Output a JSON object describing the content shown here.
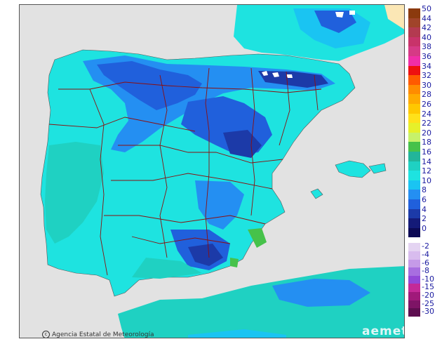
{
  "map": {
    "type": "temperature-map",
    "region": "Iberian Peninsula and Balearic Islands",
    "credit": "Agencia Estatal de Meteorología",
    "logo": "aemet"
  },
  "legend": {
    "positive": [
      {
        "label": "50",
        "color": "#8b3a0e"
      },
      {
        "label": "44",
        "color": "#a0442a"
      },
      {
        "label": "42",
        "color": "#b33a50"
      },
      {
        "label": "40",
        "color": "#c8336a"
      },
      {
        "label": "38",
        "color": "#d63a86"
      },
      {
        "label": "36",
        "color": "#f02ea8"
      },
      {
        "label": "34",
        "color": "#ee1010"
      },
      {
        "label": "32",
        "color": "#ff5a00"
      },
      {
        "label": "30",
        "color": "#ff8c00"
      },
      {
        "label": "28",
        "color": "#ffab00"
      },
      {
        "label": "26",
        "color": "#ffc800"
      },
      {
        "label": "24",
        "color": "#ffe11a"
      },
      {
        "label": "22",
        "color": "#e6f02a"
      },
      {
        "label": "20",
        "color": "#c6f26a"
      },
      {
        "label": "18",
        "color": "#46c24a"
      },
      {
        "label": "16",
        "color": "#22b59a"
      },
      {
        "label": "14",
        "color": "#1fd1c2"
      },
      {
        "label": "12",
        "color": "#1ee3e0"
      },
      {
        "label": "10",
        "color": "#1ac4f2"
      },
      {
        "label": "8",
        "color": "#248ff2"
      },
      {
        "label": "6",
        "color": "#2060dc"
      },
      {
        "label": "4",
        "color": "#1c3aa8"
      },
      {
        "label": "2",
        "color": "#141a78"
      },
      {
        "label": "0",
        "color": "#0c0a55"
      }
    ],
    "negative": [
      {
        "label": "-2",
        "color": "#e4d4f2"
      },
      {
        "label": "-4",
        "color": "#d8bcee"
      },
      {
        "label": "-6",
        "color": "#c59ae8"
      },
      {
        "label": "-8",
        "color": "#a86ee0"
      },
      {
        "label": "-10",
        "color": "#9348d8"
      },
      {
        "label": "-15",
        "color": "#c42a98"
      },
      {
        "label": "-20",
        "color": "#a01a7a"
      },
      {
        "label": "-25",
        "color": "#7e1466"
      },
      {
        "label": "-30",
        "color": "#5e0e50"
      }
    ]
  }
}
